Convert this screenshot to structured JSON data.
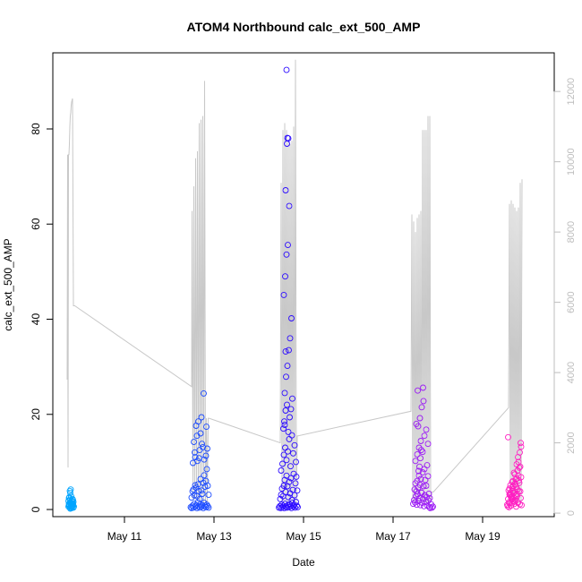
{
  "chart_data": {
    "type": "scatter",
    "title": "ATOM4 Northbound calc_ext_500_AMP",
    "xlabel": "Date",
    "ylabel": "calc_ext_500_AMP",
    "xlim": [
      9.4,
      20.6
    ],
    "ylim": [
      -1.5,
      96
    ],
    "y2lim": [
      -100,
      13100
    ],
    "x_ticks": [
      {
        "value": 11,
        "label": "May 11"
      },
      {
        "value": 13,
        "label": "May 13"
      },
      {
        "value": 15,
        "label": "May 15"
      },
      {
        "value": 17,
        "label": "May 17"
      },
      {
        "value": 19,
        "label": "May 19"
      }
    ],
    "y_ticks": [
      0,
      20,
      40,
      60,
      80
    ],
    "y2_ticks": [
      0,
      2000,
      4000,
      6000,
      8000,
      10000,
      12000
    ],
    "grid": false,
    "point_colors": [
      "#00a5ff",
      "#1c4bff",
      "#2d0cff",
      "#9c1cf5",
      "#ff1fc2"
    ],
    "line_color": "#c8c8c8",
    "axis_color_right": "#bdbdbd",
    "secondary_line": {
      "description_units": "right axis",
      "x": [
        9.72,
        9.73,
        9.74,
        9.75,
        9.76,
        9.77,
        9.78,
        9.79,
        9.8,
        9.81,
        9.82,
        9.84,
        9.86,
        9.87,
        9.88,
        9.89,
        12.5,
        12.51,
        12.53,
        12.55,
        12.57,
        12.59,
        12.61,
        12.63,
        12.65,
        12.67,
        12.69,
        12.71,
        12.73,
        12.75,
        12.77,
        12.79,
        12.81,
        12.83,
        12.85,
        12.87,
        12.88,
        12.89,
        14.48,
        14.5,
        14.52,
        14.54,
        14.56,
        14.58,
        14.6,
        14.62,
        14.64,
        14.66,
        14.68,
        14.7,
        14.72,
        14.74,
        14.76,
        14.78,
        14.8,
        14.82,
        14.84,
        14.86,
        14.88,
        17.4,
        17.42,
        17.44,
        17.46,
        17.48,
        17.5,
        17.52,
        17.54,
        17.56,
        17.58,
        17.6,
        17.62,
        17.64,
        17.66,
        17.68,
        17.7,
        17.72,
        17.74,
        17.76,
        17.78,
        17.8,
        17.82,
        17.84,
        17.86,
        17.88,
        17.9,
        19.58,
        19.6,
        19.62,
        19.64,
        19.66,
        19.68,
        19.7,
        19.72,
        19.74,
        19.76,
        19.78,
        19.8,
        19.82,
        19.84,
        19.86,
        19.88
      ],
      "y": [
        3800,
        10200,
        1300,
        10200,
        10200,
        10500,
        11000,
        11300,
        11400,
        11600,
        11700,
        11800,
        5900,
        5900,
        5900,
        5900,
        3600,
        8600,
        400,
        9300,
        400,
        10100,
        400,
        10300,
        400,
        11100,
        300,
        11200,
        300,
        11300,
        300,
        12300,
        300,
        2700,
        300,
        2700,
        2700,
        2700,
        2000,
        9400,
        300,
        10900,
        300,
        11100,
        300,
        10900,
        300,
        10600,
        300,
        10500,
        300,
        10600,
        300,
        11000,
        300,
        12900,
        300,
        2200,
        2200,
        2900,
        8500,
        300,
        8300,
        300,
        8000,
        300,
        8400,
        300,
        8500,
        300,
        8600,
        300,
        10900,
        300,
        10900,
        300,
        10900,
        300,
        11300,
        300,
        11300,
        300,
        600,
        600,
        600,
        3000,
        8800,
        300,
        8900,
        300,
        8800,
        300,
        8700,
        300,
        8600,
        300,
        8700,
        300,
        9400,
        300,
        9500
      ]
    },
    "series": [
      {
        "x": [
          9.75,
          9.75,
          9.76,
          9.77,
          9.78,
          9.79,
          9.8,
          9.81,
          9.82,
          9.83,
          9.84,
          9.85,
          9.86,
          9.87,
          9.78,
          9.79,
          9.8,
          9.81,
          9.76,
          9.77,
          9.82,
          9.83,
          9.84,
          9.85,
          9.79,
          9.8,
          9.81,
          9.78,
          9.77,
          9.76,
          9.85,
          9.86,
          9.84,
          9.83,
          9.82
        ],
        "y": [
          1.8,
          0.6,
          1.2,
          0.9,
          2.1,
          0.4,
          1.5,
          0.7,
          1.9,
          0.5,
          1.3,
          0.8,
          1.6,
          0.6,
          3.9,
          3.5,
          4.2,
          2.8,
          2.4,
          1.1,
          0.3,
          1.7,
          0.9,
          2.0,
          0.2,
          1.0,
          0.6,
          1.4,
          2.6,
          0.8,
          1.2,
          0.4,
          2.2,
          1.8,
          1.1
        ]
      },
      {
        "x": [
          12.48,
          12.5,
          12.52,
          12.54,
          12.56,
          12.58,
          12.6,
          12.62,
          12.64,
          12.66,
          12.68,
          12.7,
          12.72,
          12.74,
          12.76,
          12.78,
          12.8,
          12.82,
          12.84,
          12.86,
          12.88,
          12.5,
          12.52,
          12.54,
          12.56,
          12.58,
          12.6,
          12.62,
          12.64,
          12.66,
          12.68,
          12.7,
          12.72,
          12.74,
          12.76,
          12.78,
          12.8,
          12.82,
          12.84,
          12.86,
          12.88,
          12.55,
          12.6,
          12.65,
          12.7,
          12.75,
          12.57,
          12.62,
          12.67,
          12.72,
          12.77,
          12.82,
          12.85,
          12.53,
          12.58,
          12.63,
          12.68,
          12.73,
          12.78,
          12.83
        ],
        "y": [
          0.5,
          0.3,
          0.8,
          0.4,
          1.2,
          0.6,
          0.9,
          0.3,
          1.5,
          0.7,
          0.4,
          1.1,
          0.6,
          0.9,
          0.3,
          1.4,
          0.8,
          0.5,
          1.0,
          0.7,
          0.4,
          2.5,
          3.8,
          4.2,
          3.0,
          5.1,
          4.6,
          2.8,
          5.3,
          3.9,
          2.2,
          6.4,
          4.0,
          3.3,
          5.6,
          7.2,
          4.8,
          6.0,
          8.5,
          5.0,
          3.1,
          14.2,
          17.6,
          18.5,
          16.0,
          13.1,
          12.0,
          15.5,
          10.8,
          19.4,
          24.4,
          11.3,
          12.8,
          9.8,
          11.0,
          10.2,
          12.5,
          13.8,
          10.5,
          17.4
        ]
      },
      {
        "x": [
          14.45,
          14.47,
          14.49,
          14.51,
          14.53,
          14.55,
          14.57,
          14.59,
          14.61,
          14.63,
          14.65,
          14.67,
          14.69,
          14.71,
          14.73,
          14.75,
          14.77,
          14.79,
          14.81,
          14.83,
          14.85,
          14.87,
          14.48,
          14.5,
          14.52,
          14.54,
          14.56,
          14.58,
          14.6,
          14.62,
          14.64,
          14.66,
          14.68,
          14.7,
          14.72,
          14.74,
          14.76,
          14.78,
          14.8,
          14.82,
          14.84,
          14.86,
          14.5,
          14.53,
          14.56,
          14.59,
          14.62,
          14.65,
          14.68,
          14.71,
          14.74,
          14.77,
          14.8,
          14.83,
          14.55,
          14.57,
          14.6,
          14.63,
          14.66,
          14.69,
          14.72,
          14.75,
          14.58,
          14.61,
          14.64,
          14.67,
          14.7,
          14.73,
          14.56,
          14.59,
          14.62,
          14.65,
          14.68,
          14.6,
          14.63,
          14.66,
          14.64,
          14.62,
          14.6,
          14.58
        ],
        "y": [
          0.4,
          0.7,
          0.3,
          1.0,
          0.5,
          0.8,
          0.3,
          1.2,
          0.6,
          0.4,
          0.9,
          0.5,
          1.1,
          0.7,
          0.3,
          1.4,
          0.6,
          0.9,
          0.4,
          1.6,
          0.8,
          0.5,
          2.2,
          3.1,
          4.4,
          2.8,
          5.0,
          6.2,
          3.7,
          7.1,
          4.9,
          2.6,
          5.8,
          3.4,
          6.6,
          2.0,
          4.1,
          7.5,
          3.0,
          5.5,
          6.9,
          4.0,
          8.2,
          9.6,
          11.5,
          13.0,
          10.4,
          12.2,
          14.8,
          9.1,
          15.6,
          11.8,
          13.5,
          10.0,
          17.0,
          18.5,
          20.8,
          22.0,
          16.3,
          19.4,
          21.1,
          23.3,
          24.5,
          27.9,
          30.2,
          33.5,
          36.0,
          40.2,
          45.1,
          49.0,
          53.6,
          55.6,
          63.8,
          67.1,
          76.9,
          78.0,
          78.1,
          92.4,
          33.2,
          17.8
        ]
      },
      {
        "x": [
          17.45,
          17.47,
          17.49,
          17.51,
          17.53,
          17.55,
          17.57,
          17.59,
          17.61,
          17.63,
          17.65,
          17.67,
          17.69,
          17.71,
          17.73,
          17.75,
          17.77,
          17.79,
          17.81,
          17.83,
          17.85,
          17.87,
          17.89,
          17.48,
          17.5,
          17.52,
          17.54,
          17.56,
          17.58,
          17.6,
          17.62,
          17.64,
          17.66,
          17.68,
          17.7,
          17.72,
          17.74,
          17.76,
          17.78,
          17.8,
          17.82,
          17.5,
          17.54,
          17.58,
          17.62,
          17.66,
          17.7,
          17.74,
          17.78,
          17.52,
          17.56,
          17.6,
          17.64,
          17.68,
          17.55,
          17.57,
          17.59,
          17.61,
          17.63,
          17.67
        ],
        "y": [
          1.2,
          2.0,
          1.5,
          2.8,
          1.0,
          3.2,
          1.8,
          2.4,
          0.9,
          3.6,
          1.4,
          2.2,
          0.7,
          3.0,
          1.6,
          2.6,
          0.8,
          1.9,
          0.5,
          0.3,
          1.1,
          0.4,
          0.6,
          4.2,
          5.5,
          3.8,
          6.0,
          4.6,
          7.1,
          5.2,
          6.4,
          3.5,
          7.8,
          4.9,
          8.5,
          6.2,
          5.0,
          9.3,
          7.0,
          3.3,
          2.4,
          10.2,
          11.6,
          13.0,
          14.4,
          12.1,
          15.5,
          16.8,
          13.8,
          18.0,
          17.5,
          19.2,
          21.5,
          22.8,
          25.0,
          8.1,
          9.0,
          10.8,
          12.5,
          25.6
        ]
      },
      {
        "x": [
          19.55,
          19.57,
          19.59,
          19.61,
          19.63,
          19.65,
          19.67,
          19.69,
          19.71,
          19.73,
          19.75,
          19.77,
          19.79,
          19.81,
          19.83,
          19.85,
          19.87,
          19.58,
          19.6,
          19.62,
          19.64,
          19.66,
          19.68,
          19.7,
          19.72,
          19.74,
          19.76,
          19.78,
          19.8,
          19.82,
          19.84,
          19.86,
          19.6,
          19.63,
          19.66,
          19.69,
          19.72,
          19.75,
          19.78,
          19.81,
          19.84,
          19.62,
          19.65,
          19.68,
          19.71,
          19.74,
          19.77,
          19.8,
          19.83,
          19.86,
          19.57,
          19.79,
          19.82,
          19.85,
          19.76,
          19.73,
          19.7,
          19.67,
          19.64,
          19.61,
          19.59,
          19.56
        ],
        "y": [
          1.0,
          2.2,
          1.5,
          3.0,
          0.8,
          2.6,
          1.8,
          3.4,
          1.2,
          2.0,
          0.6,
          2.8,
          1.4,
          3.8,
          1.1,
          2.4,
          0.9,
          4.0,
          3.2,
          5.1,
          2.7,
          4.6,
          6.0,
          3.5,
          5.4,
          2.9,
          6.5,
          4.2,
          7.1,
          5.6,
          3.8,
          6.8,
          4.4,
          3.1,
          5.8,
          2.5,
          7.4,
          4.8,
          8.2,
          6.1,
          9.0,
          3.6,
          2.1,
          4.9,
          1.7,
          6.3,
          3.3,
          10.0,
          12.0,
          13.2,
          15.2,
          11.0,
          8.8,
          14.0,
          9.5,
          5.2,
          7.7,
          3.9,
          2.3,
          1.3,
          0.5,
          0.7
        ]
      }
    ]
  }
}
